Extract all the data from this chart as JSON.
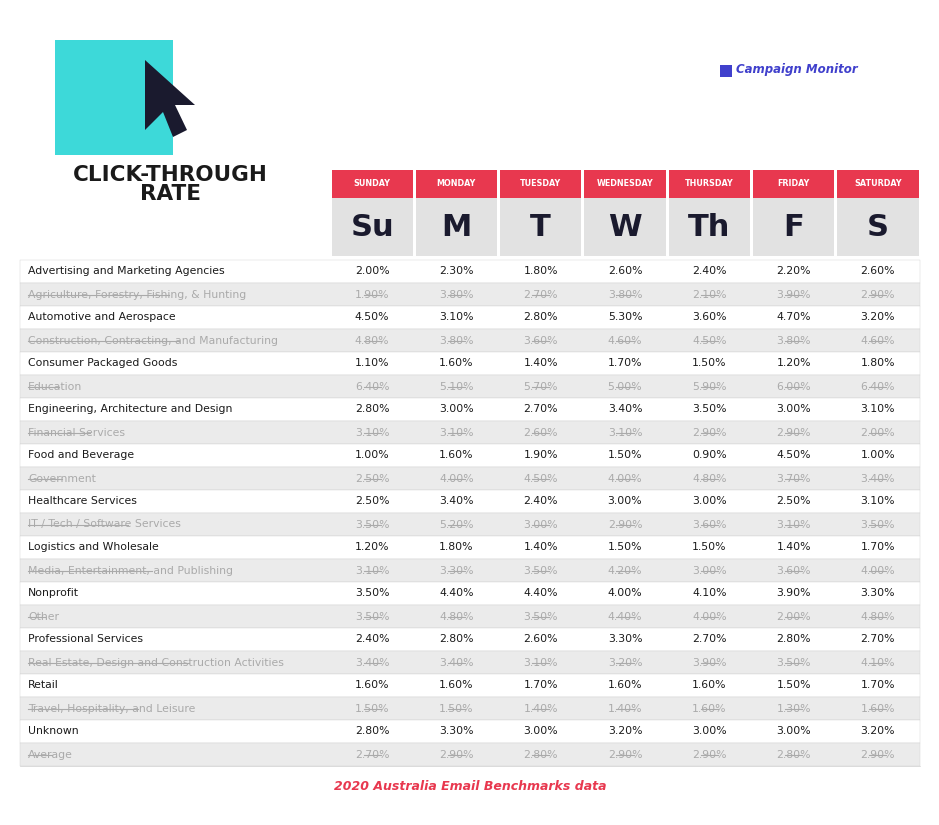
{
  "days_short": [
    "Su",
    "M",
    "T",
    "W",
    "Th",
    "F",
    "S"
  ],
  "days_long": [
    "SUNDAY",
    "MONDAY",
    "TUESDAY",
    "WEDNESDAY",
    "THURSDAY",
    "FRIDAY",
    "SATURDAY"
  ],
  "rows": [
    {
      "industry": "Advertising and Marketing Agencies",
      "strikethrough": false,
      "values": [
        "2.00%",
        "2.30%",
        "1.80%",
        "2.60%",
        "2.40%",
        "2.20%",
        "2.60%"
      ]
    },
    {
      "industry": "Agriculture, Forestry, Fishing, & Hunting",
      "strikethrough": true,
      "values": [
        "1.90%",
        "3.80%",
        "2.70%",
        "3.80%",
        "2.10%",
        "3.90%",
        "2.90%"
      ]
    },
    {
      "industry": "Automotive and Aerospace",
      "strikethrough": false,
      "values": [
        "4.50%",
        "3.10%",
        "2.80%",
        "5.30%",
        "3.60%",
        "4.70%",
        "3.20%"
      ]
    },
    {
      "industry": "Construction, Contracting, and Manufacturing",
      "strikethrough": true,
      "values": [
        "4.80%",
        "3.80%",
        "3.60%",
        "4.60%",
        "4.50%",
        "3.80%",
        "4.60%"
      ]
    },
    {
      "industry": "Consumer Packaged Goods",
      "strikethrough": false,
      "values": [
        "1.10%",
        "1.60%",
        "1.40%",
        "1.70%",
        "1.50%",
        "1.20%",
        "1.80%"
      ]
    },
    {
      "industry": "Education",
      "strikethrough": true,
      "values": [
        "6.40%",
        "5.10%",
        "5.70%",
        "5.00%",
        "5.90%",
        "6.00%",
        "6.40%"
      ]
    },
    {
      "industry": "Engineering, Architecture and Design",
      "strikethrough": false,
      "values": [
        "2.80%",
        "3.00%",
        "2.70%",
        "3.40%",
        "3.50%",
        "3.00%",
        "3.10%"
      ]
    },
    {
      "industry": "Financial Services",
      "strikethrough": true,
      "values": [
        "3.10%",
        "3.10%",
        "2.60%",
        "3.10%",
        "2.90%",
        "2.90%",
        "2.00%"
      ]
    },
    {
      "industry": "Food and Beverage",
      "strikethrough": false,
      "values": [
        "1.00%",
        "1.60%",
        "1.90%",
        "1.50%",
        "0.90%",
        "4.50%",
        "1.00%"
      ]
    },
    {
      "industry": "Government",
      "strikethrough": true,
      "values": [
        "2.50%",
        "4.00%",
        "4.50%",
        "4.00%",
        "4.80%",
        "3.70%",
        "3.40%"
      ]
    },
    {
      "industry": "Healthcare Services",
      "strikethrough": false,
      "values": [
        "2.50%",
        "3.40%",
        "2.40%",
        "3.00%",
        "3.00%",
        "2.50%",
        "3.10%"
      ]
    },
    {
      "industry": "IT / Tech / Software Services",
      "strikethrough": true,
      "values": [
        "3.50%",
        "5.20%",
        "3.00%",
        "2.90%",
        "3.60%",
        "3.10%",
        "3.50%"
      ]
    },
    {
      "industry": "Logistics and Wholesale",
      "strikethrough": false,
      "values": [
        "1.20%",
        "1.80%",
        "1.40%",
        "1.50%",
        "1.50%",
        "1.40%",
        "1.70%"
      ]
    },
    {
      "industry": "Media, Entertainment, and Publishing",
      "strikethrough": true,
      "values": [
        "3.10%",
        "3.30%",
        "3.50%",
        "4.20%",
        "3.00%",
        "3.60%",
        "4.00%"
      ]
    },
    {
      "industry": "Nonprofit",
      "strikethrough": false,
      "values": [
        "3.50%",
        "4.40%",
        "4.40%",
        "4.00%",
        "4.10%",
        "3.90%",
        "3.30%"
      ]
    },
    {
      "industry": "Other",
      "strikethrough": true,
      "values": [
        "3.50%",
        "4.80%",
        "3.50%",
        "4.40%",
        "4.00%",
        "2.00%",
        "4.80%"
      ]
    },
    {
      "industry": "Professional Services",
      "strikethrough": false,
      "values": [
        "2.40%",
        "2.80%",
        "2.60%",
        "3.30%",
        "2.70%",
        "2.80%",
        "2.70%"
      ]
    },
    {
      "industry": "Real Estate, Design and Construction Activities",
      "strikethrough": true,
      "values": [
        "3.40%",
        "3.40%",
        "3.10%",
        "3.20%",
        "3.90%",
        "3.50%",
        "4.10%"
      ]
    },
    {
      "industry": "Retail",
      "strikethrough": false,
      "values": [
        "1.60%",
        "1.60%",
        "1.70%",
        "1.60%",
        "1.60%",
        "1.50%",
        "1.70%"
      ]
    },
    {
      "industry": "Travel, Hospitality, and Leisure",
      "strikethrough": true,
      "values": [
        "1.50%",
        "1.50%",
        "1.40%",
        "1.40%",
        "1.60%",
        "1.30%",
        "1.60%"
      ]
    },
    {
      "industry": "Unknown",
      "strikethrough": false,
      "values": [
        "2.80%",
        "3.30%",
        "3.00%",
        "3.20%",
        "3.00%",
        "3.00%",
        "3.20%"
      ]
    },
    {
      "industry": "Average",
      "strikethrough": true,
      "values": [
        "2.70%",
        "2.90%",
        "2.80%",
        "2.90%",
        "2.90%",
        "2.80%",
        "2.90%"
      ]
    }
  ],
  "bg_color": "#ffffff",
  "header_bg": "#e8384f",
  "header_text": "#ffffff",
  "row_alt_bg": "#ebebeb",
  "row_bg": "#ffffff",
  "strikethrough_color": "#aaaaaa",
  "normal_color": "#1a1a1a",
  "footer_text": "2020 Australia Email Benchmarks data",
  "footer_color": "#e8384f",
  "cyan_color": "#3dd9d9",
  "cursor_color": "#1a1a2e",
  "logo_color": "#4040cc",
  "title_color": "#1a1a1a"
}
